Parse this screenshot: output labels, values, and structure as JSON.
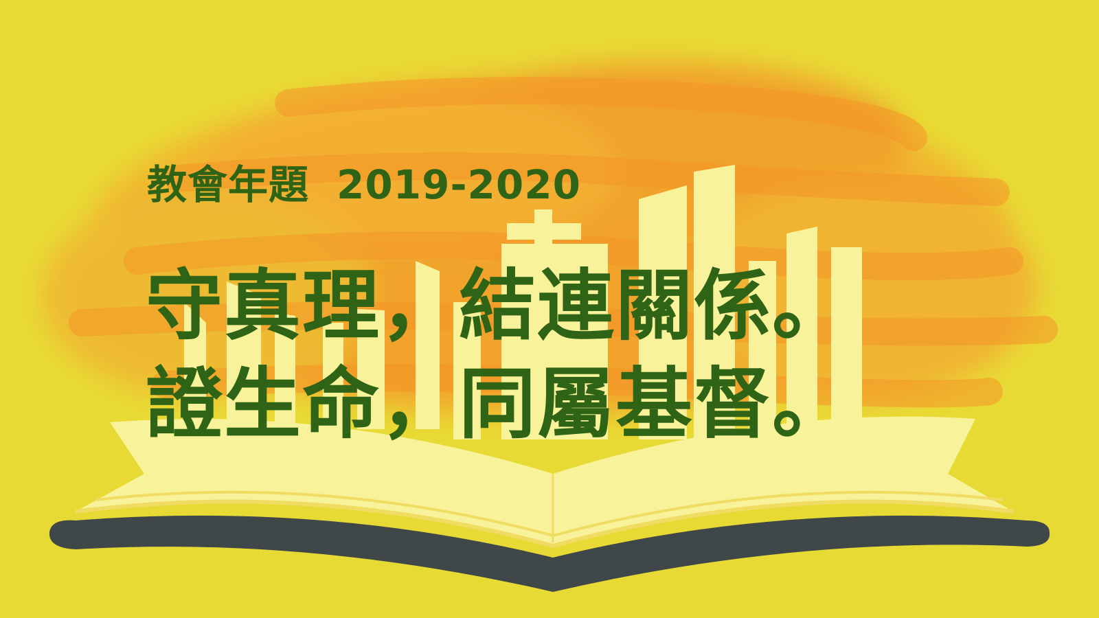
{
  "banner": {
    "subtitle": "教會年題",
    "year": "2019-2020",
    "motto_line1": "守真理，結連關係。",
    "motto_line2": "證生命，同屬基督。"
  },
  "colors": {
    "background": "#e8da35",
    "glow": "#f59a2a",
    "pages": "#f8f39a",
    "book_cover": "#3f4748",
    "text": "#2f6416"
  }
}
